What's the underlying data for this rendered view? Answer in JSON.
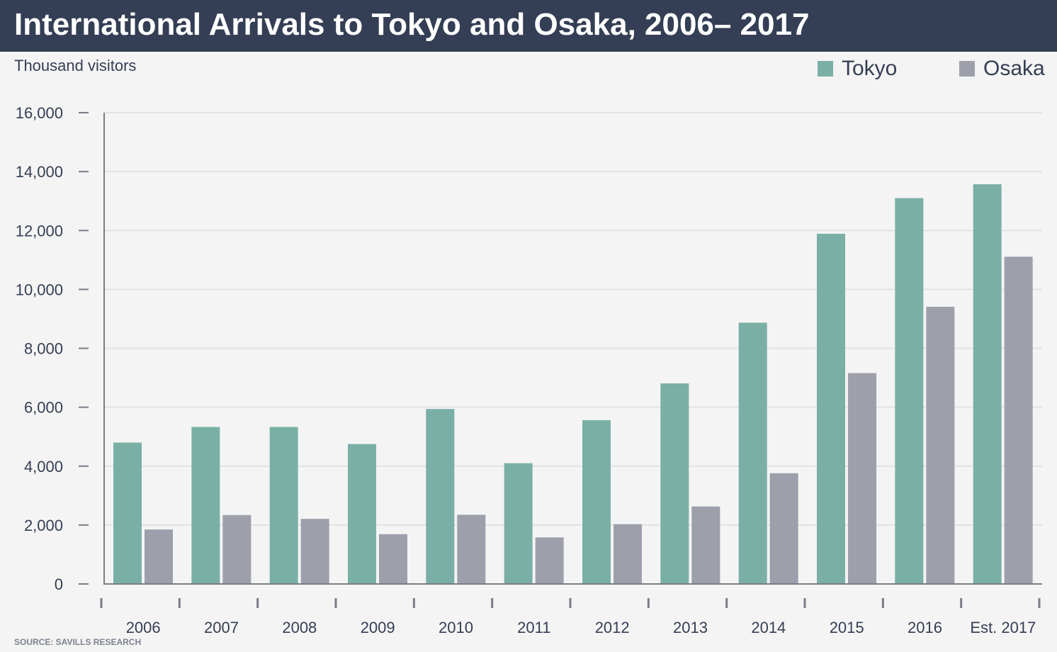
{
  "header": {
    "title": "International Arrivals to Tokyo and Osaka, 2006– 2017"
  },
  "unit_label": "Thousand visitors",
  "source": "SOURCE: SAVILLS RESEARCH",
  "colors": {
    "tokyo": "#7aafa6",
    "osaka": "#9da0ab",
    "header_bg": "#343e54",
    "axis": "#7a7d86",
    "grid": "#e2e2e2"
  },
  "chart_data": {
    "type": "bar",
    "title": "International Arrivals to Tokyo and Osaka, 2006– 2017",
    "ylabel": "Thousand visitors",
    "xlabel": "",
    "ylim": [
      0,
      16000
    ],
    "yticks": [
      0,
      2000,
      4000,
      6000,
      8000,
      10000,
      12000,
      14000,
      16000
    ],
    "ytick_labels": [
      "0",
      "2,000",
      "4,000",
      "6,000",
      "8,000",
      "10,000",
      "12,000",
      "14,000",
      "16,000"
    ],
    "grid": true,
    "legend_position": "top-right",
    "categories": [
      "2006",
      "2007",
      "2008",
      "2009",
      "2010",
      "2011",
      "2012",
      "2013",
      "2014",
      "2015",
      "2016",
      "Est. 2017"
    ],
    "series": [
      {
        "name": "Tokyo",
        "color": "#7aafa6",
        "values": [
          4800,
          5330,
          5330,
          4750,
          5940,
          4100,
          5560,
          6810,
          8870,
          11890,
          13100,
          13570
        ]
      },
      {
        "name": "Osaka",
        "color": "#9da0ab",
        "values": [
          1850,
          2340,
          2210,
          1690,
          2350,
          1580,
          2030,
          2630,
          3760,
          7160,
          9410,
          11110
        ]
      }
    ]
  }
}
